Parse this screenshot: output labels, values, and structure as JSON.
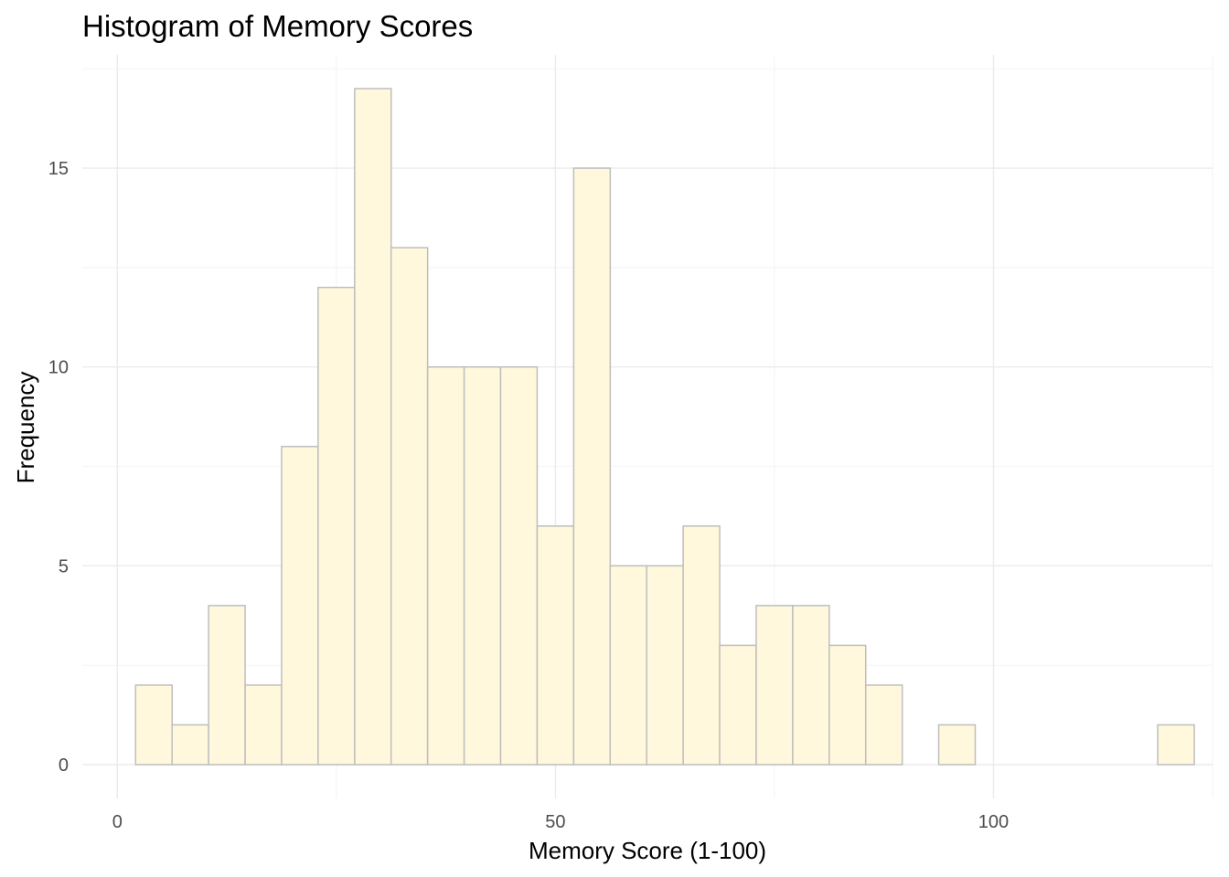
{
  "chart_data": {
    "type": "bar",
    "title": "Histogram of Memory Scores",
    "xlabel": "Memory Score (1-100)",
    "ylabel": "Frequency",
    "bin_width": 4.17,
    "bins": [
      {
        "x": 4.17,
        "count": 2
      },
      {
        "x": 8.33,
        "count": 1
      },
      {
        "x": 12.5,
        "count": 4
      },
      {
        "x": 16.67,
        "count": 2
      },
      {
        "x": 20.83,
        "count": 8
      },
      {
        "x": 25.0,
        "count": 12
      },
      {
        "x": 29.17,
        "count": 17
      },
      {
        "x": 33.33,
        "count": 13
      },
      {
        "x": 37.5,
        "count": 10
      },
      {
        "x": 41.67,
        "count": 10
      },
      {
        "x": 45.83,
        "count": 10
      },
      {
        "x": 50.0,
        "count": 6
      },
      {
        "x": 54.17,
        "count": 15
      },
      {
        "x": 58.33,
        "count": 5
      },
      {
        "x": 62.5,
        "count": 5
      },
      {
        "x": 66.67,
        "count": 6
      },
      {
        "x": 70.83,
        "count": 3
      },
      {
        "x": 75.0,
        "count": 4
      },
      {
        "x": 79.17,
        "count": 4
      },
      {
        "x": 83.33,
        "count": 3
      },
      {
        "x": 87.5,
        "count": 2
      },
      {
        "x": 91.67,
        "count": 0
      },
      {
        "x": 95.83,
        "count": 1
      },
      {
        "x": 100.0,
        "count": 0
      },
      {
        "x": 104.17,
        "count": 0
      },
      {
        "x": 108.33,
        "count": 0
      },
      {
        "x": 112.5,
        "count": 0
      },
      {
        "x": 116.67,
        "count": 0
      },
      {
        "x": 120.83,
        "count": 1
      }
    ],
    "x_ticks": [
      0,
      50,
      100
    ],
    "x_tick_labels": [
      "0",
      "50",
      "100"
    ],
    "y_ticks": [
      0,
      5,
      10,
      15
    ],
    "y_tick_labels": [
      "0",
      "5",
      "10",
      "15"
    ],
    "xlim": [
      -4,
      125
    ],
    "ylim": [
      -0.85,
      17.85
    ],
    "grid": true,
    "legend": "none",
    "colors": {
      "bar_fill": "#fff8dc",
      "bar_stroke": "#bebebe",
      "background": "#ffffff"
    }
  }
}
